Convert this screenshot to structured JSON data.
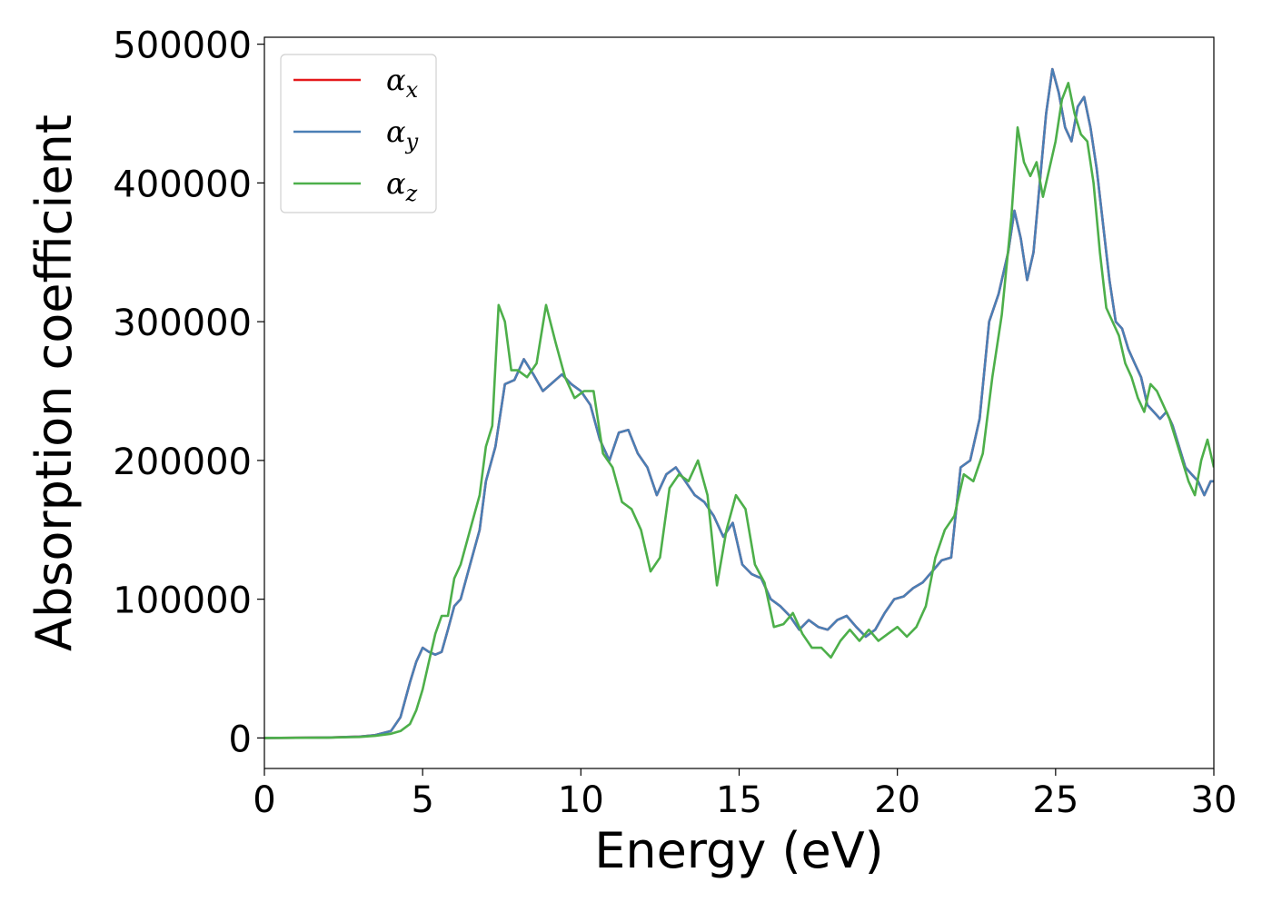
{
  "chart_data": {
    "type": "line",
    "title": "",
    "xlabel": "Energy (eV)",
    "ylabel": "Absorption coefficient",
    "xlim": [
      0,
      30
    ],
    "ylim": [
      -22000,
      505000
    ],
    "xticks": [
      0,
      5,
      10,
      15,
      20,
      25,
      30
    ],
    "yticks": [
      0,
      100000,
      200000,
      300000,
      400000,
      500000
    ],
    "grid": false,
    "legend_position": "top-left",
    "series": [
      {
        "name": "αx",
        "color": "#e41a1c",
        "x": [
          0,
          2,
          3,
          3.5,
          4,
          4.3,
          4.6,
          4.8,
          5.0,
          5.2,
          5.4,
          5.6,
          5.8,
          6.0,
          6.2,
          6.5,
          6.8,
          7.0,
          7.3,
          7.6,
          7.9,
          8.2,
          8.5,
          8.8,
          9.1,
          9.4,
          9.7,
          10.0,
          10.3,
          10.6,
          10.9,
          11.2,
          11.5,
          11.8,
          12.1,
          12.4,
          12.7,
          13.0,
          13.3,
          13.6,
          13.9,
          14.2,
          14.5,
          14.8,
          15.1,
          15.4,
          15.7,
          16.0,
          16.3,
          16.6,
          16.9,
          17.2,
          17.5,
          17.8,
          18.1,
          18.4,
          18.7,
          19.0,
          19.3,
          19.6,
          19.9,
          20.2,
          20.5,
          20.8,
          21.1,
          21.4,
          21.7,
          22.0,
          22.3,
          22.6,
          22.9,
          23.2,
          23.5,
          23.7,
          23.9,
          24.1,
          24.3,
          24.5,
          24.7,
          24.9,
          25.1,
          25.3,
          25.5,
          25.7,
          25.9,
          26.1,
          26.3,
          26.5,
          26.7,
          26.9,
          27.1,
          27.3,
          27.5,
          27.7,
          27.9,
          28.1,
          28.3,
          28.5,
          28.7,
          28.9,
          29.1,
          29.3,
          29.5,
          29.7,
          29.9,
          30
        ],
        "y": [
          0,
          300,
          1000,
          2000,
          5000,
          15000,
          40000,
          55000,
          65000,
          62000,
          60000,
          62000,
          78000,
          95000,
          100000,
          125000,
          150000,
          185000,
          210000,
          255000,
          258000,
          273000,
          262000,
          250000,
          256000,
          262000,
          255000,
          250000,
          240000,
          215000,
          200000,
          220000,
          222000,
          205000,
          195000,
          175000,
          190000,
          195000,
          185000,
          175000,
          170000,
          160000,
          145000,
          155000,
          125000,
          118000,
          115000,
          100000,
          95000,
          88000,
          78000,
          85000,
          80000,
          78000,
          85000,
          88000,
          80000,
          73000,
          78000,
          90000,
          100000,
          102000,
          108000,
          112000,
          120000,
          128000,
          130000,
          195000,
          200000,
          230000,
          300000,
          320000,
          350000,
          380000,
          360000,
          330000,
          350000,
          400000,
          450000,
          482000,
          465000,
          440000,
          430000,
          455000,
          462000,
          440000,
          410000,
          370000,
          330000,
          300000,
          295000,
          280000,
          270000,
          260000,
          240000,
          235000,
          230000,
          235000,
          225000,
          210000,
          195000,
          190000,
          185000,
          175000,
          185000,
          185000
        ]
      },
      {
        "name": "αy",
        "color": "#4a7fb5",
        "x": [
          0,
          2,
          3,
          3.5,
          4,
          4.3,
          4.6,
          4.8,
          5.0,
          5.2,
          5.4,
          5.6,
          5.8,
          6.0,
          6.2,
          6.5,
          6.8,
          7.0,
          7.3,
          7.6,
          7.9,
          8.2,
          8.5,
          8.8,
          9.1,
          9.4,
          9.7,
          10.0,
          10.3,
          10.6,
          10.9,
          11.2,
          11.5,
          11.8,
          12.1,
          12.4,
          12.7,
          13.0,
          13.3,
          13.6,
          13.9,
          14.2,
          14.5,
          14.8,
          15.1,
          15.4,
          15.7,
          16.0,
          16.3,
          16.6,
          16.9,
          17.2,
          17.5,
          17.8,
          18.1,
          18.4,
          18.7,
          19.0,
          19.3,
          19.6,
          19.9,
          20.2,
          20.5,
          20.8,
          21.1,
          21.4,
          21.7,
          22.0,
          22.3,
          22.6,
          22.9,
          23.2,
          23.5,
          23.7,
          23.9,
          24.1,
          24.3,
          24.5,
          24.7,
          24.9,
          25.1,
          25.3,
          25.5,
          25.7,
          25.9,
          26.1,
          26.3,
          26.5,
          26.7,
          26.9,
          27.1,
          27.3,
          27.5,
          27.7,
          27.9,
          28.1,
          28.3,
          28.5,
          28.7,
          28.9,
          29.1,
          29.3,
          29.5,
          29.7,
          29.9,
          30
        ],
        "y": [
          0,
          300,
          1000,
          2000,
          5000,
          15000,
          40000,
          55000,
          65000,
          62000,
          60000,
          62000,
          78000,
          95000,
          100000,
          125000,
          150000,
          185000,
          210000,
          255000,
          258000,
          273000,
          262000,
          250000,
          256000,
          262000,
          255000,
          250000,
          240000,
          215000,
          200000,
          220000,
          222000,
          205000,
          195000,
          175000,
          190000,
          195000,
          185000,
          175000,
          170000,
          160000,
          145000,
          155000,
          125000,
          118000,
          115000,
          100000,
          95000,
          88000,
          78000,
          85000,
          80000,
          78000,
          85000,
          88000,
          80000,
          73000,
          78000,
          90000,
          100000,
          102000,
          108000,
          112000,
          120000,
          128000,
          130000,
          195000,
          200000,
          230000,
          300000,
          320000,
          350000,
          380000,
          360000,
          330000,
          350000,
          400000,
          450000,
          482000,
          465000,
          440000,
          430000,
          455000,
          462000,
          440000,
          410000,
          370000,
          330000,
          300000,
          295000,
          280000,
          270000,
          260000,
          240000,
          235000,
          230000,
          235000,
          225000,
          210000,
          195000,
          190000,
          185000,
          175000,
          185000,
          185000
        ]
      },
      {
        "name": "αz",
        "color": "#4daf4a",
        "x": [
          0,
          2,
          3,
          3.5,
          4,
          4.3,
          4.6,
          4.8,
          5.0,
          5.2,
          5.4,
          5.6,
          5.8,
          6.0,
          6.2,
          6.5,
          6.8,
          7.0,
          7.2,
          7.4,
          7.6,
          7.8,
          8.0,
          8.3,
          8.6,
          8.9,
          9.2,
          9.5,
          9.8,
          10.1,
          10.4,
          10.7,
          11.0,
          11.3,
          11.6,
          11.9,
          12.2,
          12.5,
          12.8,
          13.1,
          13.4,
          13.7,
          14.0,
          14.3,
          14.6,
          14.9,
          15.2,
          15.5,
          15.8,
          16.1,
          16.4,
          16.7,
          17.0,
          17.3,
          17.6,
          17.9,
          18.2,
          18.5,
          18.8,
          19.1,
          19.4,
          19.7,
          20.0,
          20.3,
          20.6,
          20.9,
          21.2,
          21.5,
          21.8,
          22.1,
          22.4,
          22.7,
          23.0,
          23.3,
          23.6,
          23.8,
          24.0,
          24.2,
          24.4,
          24.6,
          24.8,
          25.0,
          25.2,
          25.4,
          25.6,
          25.8,
          26.0,
          26.2,
          26.4,
          26.6,
          26.8,
          27.0,
          27.2,
          27.4,
          27.6,
          27.8,
          28.0,
          28.2,
          28.4,
          28.6,
          28.8,
          29.0,
          29.2,
          29.4,
          29.6,
          29.8,
          30
        ],
        "y": [
          0,
          200,
          700,
          1500,
          3000,
          5000,
          10000,
          20000,
          35000,
          55000,
          75000,
          88000,
          88000,
          115000,
          125000,
          150000,
          175000,
          210000,
          225000,
          312000,
          300000,
          265000,
          265000,
          260000,
          270000,
          312000,
          285000,
          260000,
          245000,
          250000,
          250000,
          205000,
          195000,
          170000,
          165000,
          150000,
          120000,
          130000,
          180000,
          190000,
          185000,
          200000,
          175000,
          110000,
          150000,
          175000,
          165000,
          125000,
          112000,
          80000,
          82000,
          90000,
          75000,
          65000,
          65000,
          58000,
          70000,
          78000,
          70000,
          78000,
          70000,
          75000,
          80000,
          73000,
          80000,
          95000,
          130000,
          150000,
          160000,
          190000,
          185000,
          205000,
          260000,
          305000,
          375000,
          440000,
          415000,
          405000,
          415000,
          390000,
          410000,
          430000,
          460000,
          472000,
          450000,
          435000,
          430000,
          400000,
          350000,
          310000,
          300000,
          290000,
          270000,
          260000,
          245000,
          235000,
          255000,
          250000,
          240000,
          230000,
          215000,
          200000,
          185000,
          175000,
          200000,
          215000,
          195000
        ]
      }
    ]
  }
}
